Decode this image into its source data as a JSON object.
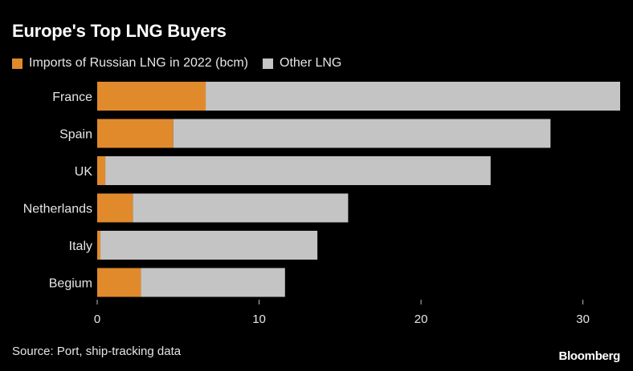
{
  "chart_data": {
    "type": "bar",
    "orientation": "horizontal",
    "stacked": true,
    "title": "Europe's Top LNG Buyers",
    "categories": [
      "France",
      "Spain",
      "UK",
      "Netherlands",
      "Italy",
      "Begium"
    ],
    "series": [
      {
        "name": "Imports of Russian LNG in 2022 (bcm)",
        "color": "#e08a2c",
        "values": [
          6.7,
          4.7,
          0.5,
          2.2,
          0.2,
          2.7
        ]
      },
      {
        "name": "Other LNG",
        "color": "#c4c4c4",
        "values": [
          25.6,
          23.3,
          23.8,
          13.3,
          13.4,
          8.9
        ]
      }
    ],
    "xlim": [
      0,
      32.3
    ],
    "xticks": [
      0,
      10,
      20,
      30
    ],
    "xlabel": "",
    "ylabel": "",
    "grid": false,
    "legend_position": "top-left",
    "source": "Source: Port, ship-tracking data",
    "brand": "Bloomberg"
  }
}
